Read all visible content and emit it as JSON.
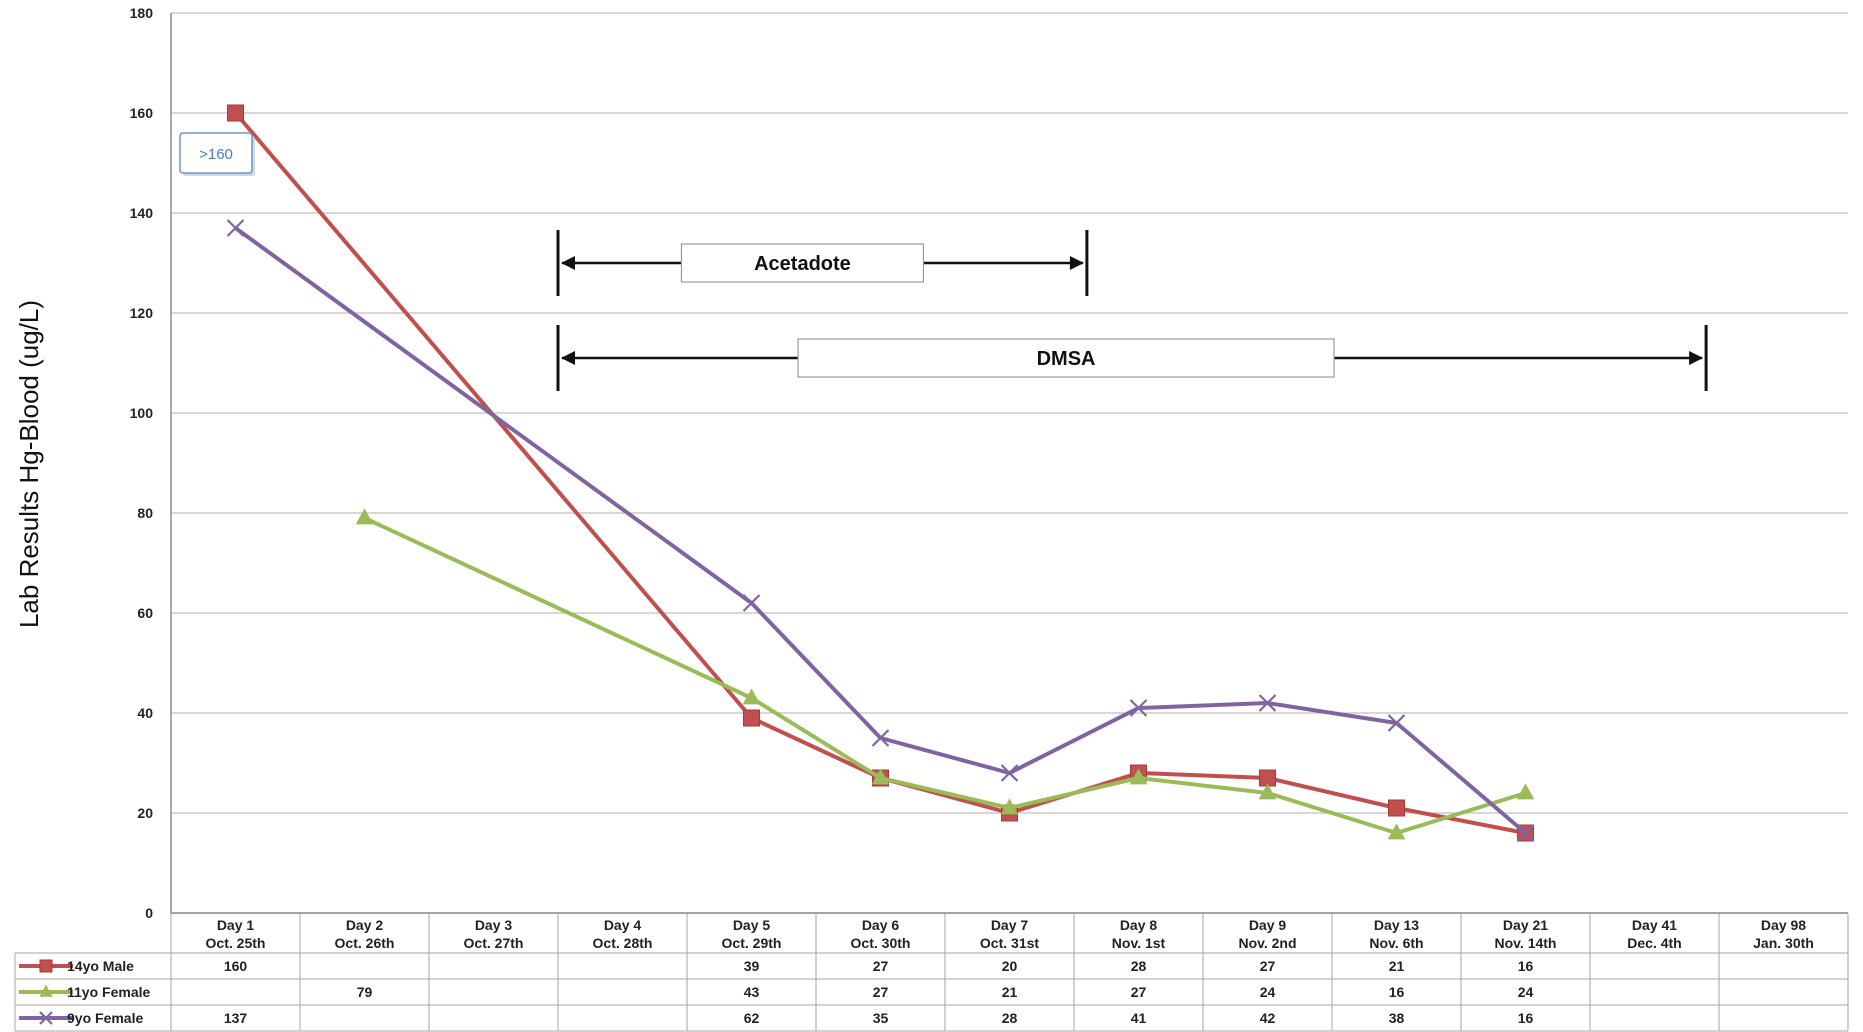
{
  "chart_data": {
    "type": "line",
    "title": "",
    "ylabel": "Lab Results  Hg-Blood (ug/L)",
    "ylim": [
      0,
      180
    ],
    "yticks": [
      0,
      20,
      40,
      60,
      80,
      100,
      120,
      140,
      160,
      180
    ],
    "grid": true,
    "legend_position": "bottom-left in data table",
    "categories": [
      [
        "Day 1",
        "Oct. 25th"
      ],
      [
        "Day 2",
        "Oct. 26th"
      ],
      [
        "Day 3",
        "Oct. 27th"
      ],
      [
        "Day 4",
        "Oct. 28th"
      ],
      [
        "Day 5",
        "Oct. 29th"
      ],
      [
        "Day 6",
        "Oct. 30th"
      ],
      [
        "Day 7",
        "Oct. 31st"
      ],
      [
        "Day 8",
        "Nov. 1st"
      ],
      [
        "Day 9",
        "Nov. 2nd"
      ],
      [
        "Day 13",
        "Nov. 6th"
      ],
      [
        "Day 21",
        "Nov. 14th"
      ],
      [
        "Day 41",
        "Dec. 4th"
      ],
      [
        "Day 98",
        "Jan. 30th"
      ]
    ],
    "series": [
      {
        "name": "14yo Male",
        "marker": "square",
        "color": "#c0504d",
        "values": [
          160,
          null,
          null,
          null,
          39,
          27,
          20,
          28,
          27,
          21,
          16,
          null,
          null
        ]
      },
      {
        "name": "11yo Female",
        "marker": "triangle",
        "color": "#9bbb59",
        "values": [
          null,
          79,
          null,
          null,
          43,
          27,
          21,
          27,
          24,
          16,
          24,
          null,
          null
        ]
      },
      {
        "name": "9yo Female",
        "marker": "x",
        "color": "#8064a2",
        "values": [
          137,
          null,
          null,
          null,
          62,
          35,
          28,
          41,
          42,
          38,
          16,
          null,
          null
        ]
      }
    ],
    "annotations": [
      {
        "text": ">160",
        "kind": "callout"
      },
      {
        "text": "Acetadote",
        "start_index": 2.5,
        "end_index": 6.6,
        "level": 130
      },
      {
        "text": "DMSA",
        "start_index": 2.5,
        "end_index": 11.4,
        "level": 111
      }
    ]
  }
}
